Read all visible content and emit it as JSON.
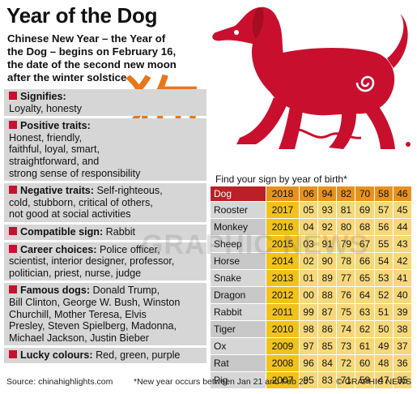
{
  "title": "Year of the Dog",
  "subtitle_lines": [
    "Chinese New Year – the Year of",
    "the Dog – begins on February 16,",
    "the date of the second new moon",
    "after the winter solstice"
  ],
  "glyph": "狗",
  "traits": [
    {
      "heading": "Signifies:",
      "lines": [
        "",
        "Loyalty, honesty"
      ]
    },
    {
      "heading": "Positive traits:",
      "lines": [
        "",
        "Honest, friendly,",
        "faithful, loyal, smart,",
        "straightforward, and",
        "strong sense of responsibility"
      ]
    },
    {
      "heading": "Negative traits:",
      "lines": [
        " Self-righteous,",
        "cold, stubborn, critical of others,",
        "not good at social activities"
      ]
    },
    {
      "heading": "Compatible sign:",
      "lines": [
        " Rabbit"
      ]
    },
    {
      "heading": "Career choices:",
      "lines": [
        " Police officer,",
        "scientist, interior designer, professor,",
        "politician, priest, nurse, judge"
      ]
    },
    {
      "heading": "Famous dogs:",
      "lines": [
        " Donald Trump,",
        "Bill Clinton, George W. Bush, Winston",
        "Churchill, Mother Teresa, Elvis",
        "Presley, Steven Spielberg, Madonna,",
        "Michael Jackson, Justin Bieber"
      ]
    },
    {
      "heading": "Lucky colours:",
      "lines": [
        " Red, green, purple"
      ]
    }
  ],
  "table": {
    "caption": "Find your sign by year of birth*",
    "header": [
      "Dog",
      "2018",
      "06",
      "94",
      "82",
      "70",
      "58",
      "46"
    ],
    "rows": [
      [
        "Rooster",
        "2017",
        "05",
        "93",
        "81",
        "69",
        "57",
        "45"
      ],
      [
        "Monkey",
        "2016",
        "04",
        "92",
        "80",
        "68",
        "56",
        "44"
      ],
      [
        "Sheep",
        "2015",
        "03",
        "91",
        "79",
        "67",
        "55",
        "43"
      ],
      [
        "Horse",
        "2014",
        "02",
        "90",
        "78",
        "66",
        "54",
        "42"
      ],
      [
        "Snake",
        "2013",
        "01",
        "89",
        "77",
        "65",
        "53",
        "41"
      ],
      [
        "Dragon",
        "2012",
        "00",
        "88",
        "76",
        "64",
        "52",
        "40"
      ],
      [
        "Rabbit",
        "2011",
        "99",
        "87",
        "75",
        "63",
        "51",
        "39"
      ],
      [
        "Tiger",
        "2010",
        "98",
        "86",
        "74",
        "62",
        "50",
        "38"
      ],
      [
        "Ox",
        "2009",
        "97",
        "85",
        "73",
        "61",
        "49",
        "37"
      ],
      [
        "Rat",
        "2008",
        "96",
        "84",
        "72",
        "60",
        "48",
        "36"
      ],
      [
        "Pig",
        "2007",
        "95",
        "83",
        "71",
        "59",
        "47",
        "35"
      ]
    ]
  },
  "watermark": "GRAPHIC NEWS",
  "footer": {
    "source": "Source: chinahighlights.com",
    "note": "*New year occurs between Jan 21 and Feb 20",
    "copyright": "© GRAPHIC NEWS"
  },
  "colors": {
    "red": "#c8102e",
    "orange": "#e8761c",
    "header_orange": "#e6921e",
    "year_yellow": "#f0c21a",
    "cell_yellow": "#f6d87a",
    "panel_grey": "#d6d6d6"
  }
}
